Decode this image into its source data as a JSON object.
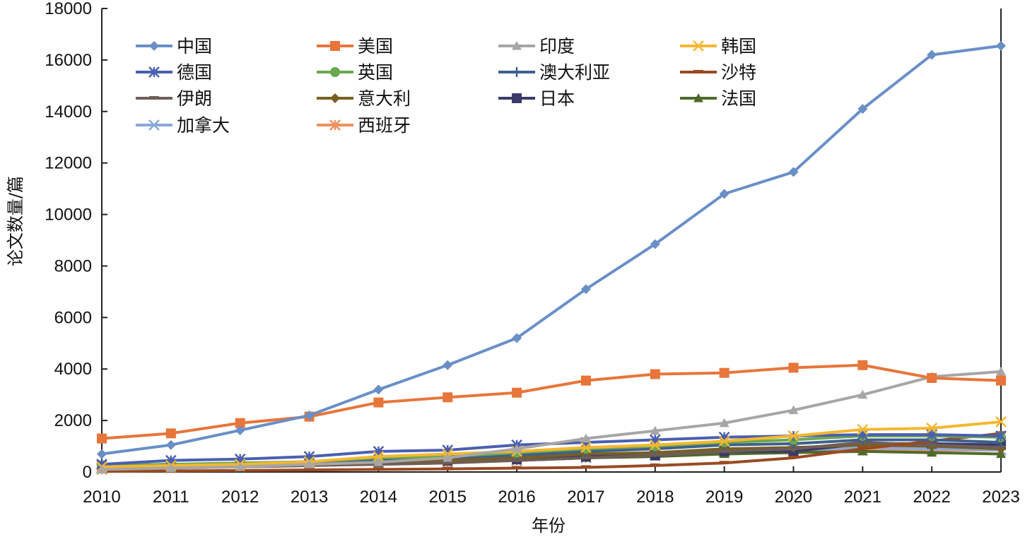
{
  "chart_data": {
    "type": "line",
    "title": "",
    "xlabel": "年份",
    "ylabel": "论文数量/篇",
    "x": [
      2010,
      2011,
      2012,
      2013,
      2014,
      2015,
      2016,
      2017,
      2018,
      2019,
      2020,
      2021,
      2022,
      2023
    ],
    "x_tick_labels": [
      "2010",
      "2011",
      "2012",
      "2013",
      "2014",
      "2015",
      "2016",
      "2017",
      "2018",
      "2019",
      "2020",
      "2021",
      "2022",
      "2023"
    ],
    "ylim": [
      0,
      18000
    ],
    "y_ticks": [
      0,
      2000,
      4000,
      6000,
      8000,
      10000,
      12000,
      14000,
      16000,
      18000
    ],
    "y_tick_labels": [
      "0",
      "2000",
      "4000",
      "6000",
      "8000",
      "10000",
      "12000",
      "14000",
      "16000",
      "18000"
    ],
    "grid": false,
    "legend_position": "top-left inside",
    "series": [
      {
        "name": "中国",
        "color": "#6a8fc7",
        "marker": "diamond",
        "values": [
          700,
          1050,
          1620,
          2200,
          3200,
          4150,
          5200,
          7100,
          8850,
          10800,
          11650,
          14100,
          16200,
          16550
        ]
      },
      {
        "name": "美国",
        "color": "#e8753a",
        "marker": "square",
        "values": [
          1300,
          1500,
          1900,
          2150,
          2700,
          2900,
          3080,
          3550,
          3800,
          3850,
          4050,
          4150,
          3650,
          3550
        ]
      },
      {
        "name": "印度",
        "color": "#a8a6a4",
        "marker": "triangle",
        "values": [
          100,
          150,
          200,
          300,
          380,
          550,
          900,
          1300,
          1600,
          1900,
          2400,
          3000,
          3700,
          3900
        ]
      },
      {
        "name": "韩国",
        "color": "#f5b730",
        "marker": "x",
        "values": [
          200,
          250,
          300,
          400,
          600,
          700,
          800,
          950,
          1050,
          1200,
          1400,
          1650,
          1700,
          1950
        ]
      },
      {
        "name": "德国",
        "color": "#4a5fb0",
        "marker": "asterisk",
        "values": [
          300,
          450,
          500,
          600,
          800,
          850,
          1050,
          1150,
          1250,
          1350,
          1400,
          1450,
          1450,
          1400
        ]
      },
      {
        "name": "英国",
        "color": "#6aa84f",
        "marker": "circle",
        "values": [
          250,
          300,
          350,
          400,
          550,
          600,
          750,
          900,
          1000,
          1150,
          1250,
          1400,
          1400,
          1350
        ]
      },
      {
        "name": "澳大利亚",
        "color": "#3f5f8f",
        "marker": "plus",
        "values": [
          200,
          250,
          300,
          350,
          450,
          550,
          650,
          800,
          900,
          1050,
          1100,
          1250,
          1250,
          1150
        ]
      },
      {
        "name": "沙特",
        "color": "#9a4a22",
        "marker": "dash",
        "values": [
          20,
          40,
          60,
          80,
          100,
          120,
          150,
          180,
          250,
          350,
          550,
          900,
          1200,
          1500
        ]
      },
      {
        "name": "伊朗",
        "color": "#6e5e58",
        "marker": "dash",
        "values": [
          100,
          150,
          200,
          250,
          300,
          350,
          450,
          550,
          650,
          800,
          900,
          1150,
          1050,
          950
        ]
      },
      {
        "name": "意大利",
        "color": "#7a5f22",
        "marker": "diamond",
        "values": [
          150,
          200,
          250,
          300,
          400,
          450,
          550,
          700,
          750,
          900,
          950,
          1050,
          1000,
          900
        ]
      },
      {
        "name": "日本",
        "color": "#3a3a6a",
        "marker": "square",
        "values": [
          250,
          300,
          300,
          350,
          400,
          450,
          500,
          600,
          650,
          800,
          800,
          1100,
          1100,
          1050
        ]
      },
      {
        "name": "法国",
        "color": "#4f6a2a",
        "marker": "triangle",
        "values": [
          150,
          200,
          250,
          300,
          350,
          400,
          450,
          550,
          600,
          700,
          750,
          800,
          750,
          700
        ]
      },
      {
        "name": "加拿大",
        "color": "#8aa8d8",
        "marker": "x",
        "values": [
          150,
          200,
          250,
          300,
          350,
          400,
          450,
          550,
          650,
          800,
          850,
          950,
          900,
          850
        ]
      },
      {
        "name": "西班牙",
        "color": "#f09060",
        "marker": "asterisk",
        "values": [
          100,
          150,
          200,
          250,
          300,
          350,
          450,
          550,
          650,
          750,
          800,
          850,
          850,
          850
        ]
      }
    ]
  }
}
